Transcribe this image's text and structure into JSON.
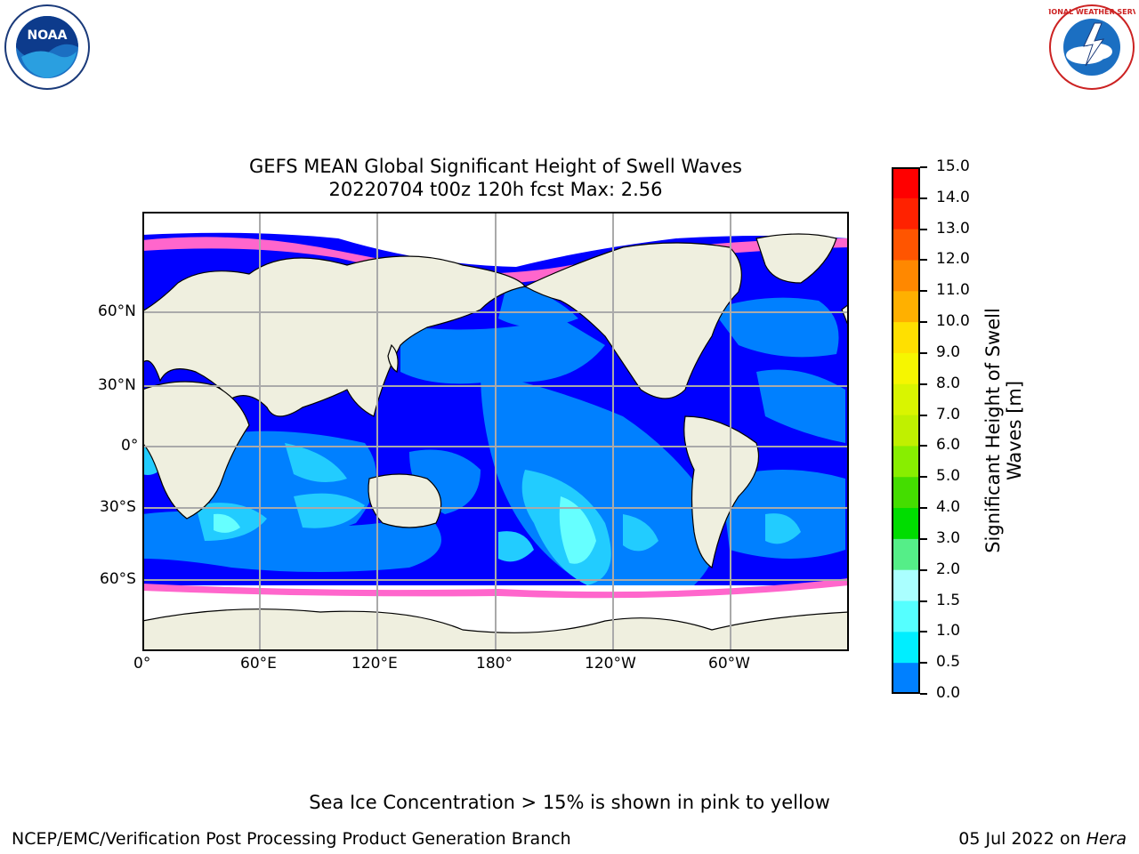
{
  "header": {
    "logo_left_text": "NOAA",
    "logo_right_text": "NATIONAL WEATHER SERVICE"
  },
  "map": {
    "title_line1": "GEFS MEAN Global Significant Height of Swell Waves",
    "title_line2": "20220704 t00z 120h fcst   Max: 2.56",
    "lat_labels": [
      "60°N",
      "30°N",
      "0°",
      "30°S",
      "60°S"
    ],
    "lon_labels": [
      "0°",
      "60°E",
      "120°E",
      "180°",
      "120°W",
      "60°W"
    ]
  },
  "colorbar": {
    "label_line1": "Significant Height of Swell",
    "label_line2": "Waves [m]",
    "ticks": [
      "15.0",
      "14.0",
      "13.0",
      "12.0",
      "11.0",
      "10.0",
      "9.0",
      "8.0",
      "7.0",
      "6.0",
      "5.0",
      "4.0",
      "3.0",
      "2.0",
      "1.5",
      "1.0",
      "0.5",
      "0.0"
    ],
    "colors": [
      "#ff0000",
      "#ff2200",
      "#ff5500",
      "#ff8800",
      "#ffb000",
      "#ffe000",
      "#f6f600",
      "#d9f500",
      "#c0f000",
      "#88ee00",
      "#44dd00",
      "#00dd00",
      "#55ee88",
      "#aaffff",
      "#55ffff",
      "#00eeff",
      "#0080ff",
      "#0000ff"
    ]
  },
  "colors": {
    "land": "#efefdf",
    "ocean_base": "#0000ff",
    "swell_mid": "#0080ff",
    "swell_high": "#22ccff",
    "swell_peak": "#66ffff",
    "ice": "#ff66cc",
    "grid": "#aaaaaa"
  },
  "notes": {
    "sea_ice": "Sea Ice Concentration > 15% is shown in pink to yellow"
  },
  "footer": {
    "left": "NCEP/EMC/Verification Post Processing Product Generation Branch",
    "right_date": "05 Jul 2022 on",
    "right_host": "Hera"
  }
}
